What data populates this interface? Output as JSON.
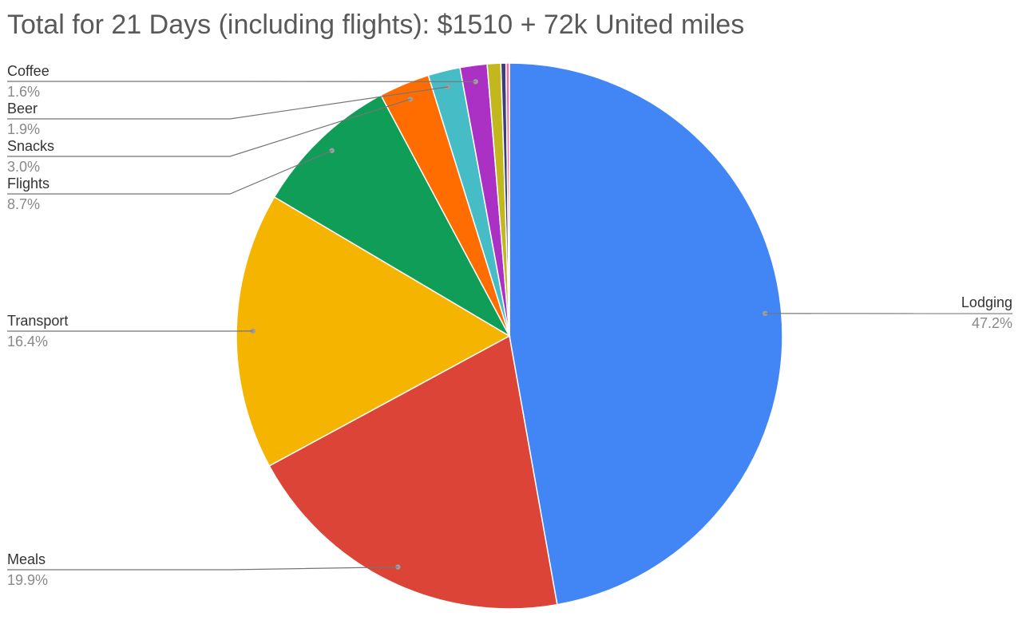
{
  "chart_data": {
    "type": "pie",
    "title": "Total for 21 Days (including flights): $1510 + 72k United miles",
    "slices": [
      {
        "label": "Lodging",
        "value": 47.2,
        "pct_label": "47.2%",
        "color": "#4285F4"
      },
      {
        "label": "Meals",
        "value": 19.9,
        "pct_label": "19.9%",
        "color": "#DB4437"
      },
      {
        "label": "Transport",
        "value": 16.4,
        "pct_label": "16.4%",
        "color": "#F4B400"
      },
      {
        "label": "Flights",
        "value": 8.7,
        "pct_label": "8.7%",
        "color": "#0F9D58"
      },
      {
        "label": "Snacks",
        "value": 3.0,
        "pct_label": "3.0%",
        "color": "#FF6D01"
      },
      {
        "label": "Beer",
        "value": 1.9,
        "pct_label": "1.9%",
        "color": "#46BDC6"
      },
      {
        "label": "Coffee",
        "value": 1.6,
        "pct_label": "1.6%",
        "color": "#AB30C4"
      },
      {
        "label": "",
        "value": 0.8,
        "pct_label": "",
        "color": "#C2B71C"
      },
      {
        "label": "",
        "value": 0.3,
        "pct_label": "",
        "color": "#3D3D7A"
      },
      {
        "label": "",
        "value": 0.2,
        "pct_label": "",
        "color": "#F06EAA"
      }
    ],
    "start_angle_deg": 0,
    "direction": "clockwise",
    "legend": "none"
  }
}
